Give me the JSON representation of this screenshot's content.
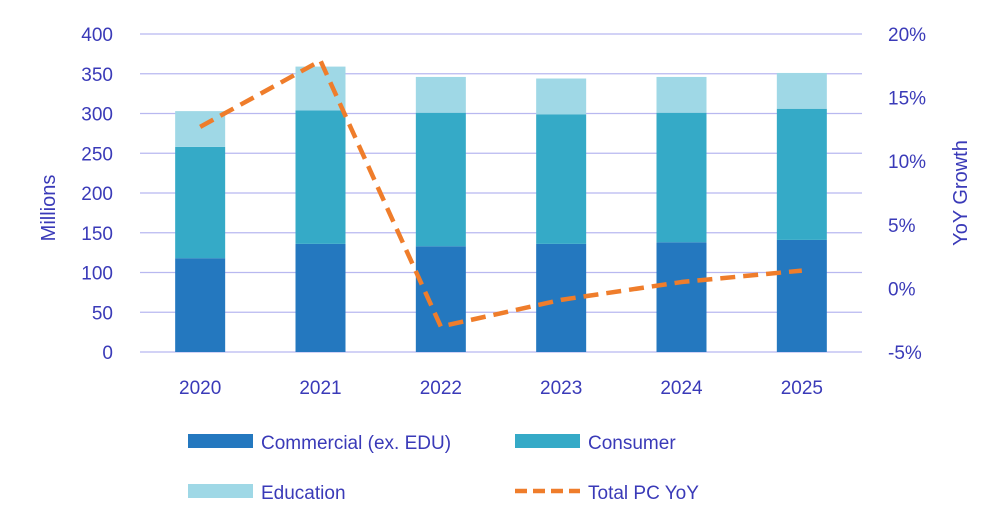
{
  "chart_data": {
    "type": "bar",
    "stacked": true,
    "categories": [
      "2020",
      "2021",
      "2022",
      "2023",
      "2024",
      "2025"
    ],
    "series": [
      {
        "name": "Commercial (ex. EDU)",
        "kind": "bar",
        "axis": "left",
        "color": "#2478bf",
        "values": [
          118,
          136,
          133,
          136,
          138,
          141
        ]
      },
      {
        "name": "Consumer",
        "kind": "bar",
        "axis": "left",
        "color": "#35aac7",
        "values": [
          140,
          168,
          168,
          163,
          163,
          165
        ]
      },
      {
        "name": "Education",
        "kind": "bar",
        "axis": "left",
        "color": "#9fd8e6",
        "values": [
          45,
          55,
          45,
          45,
          45,
          45
        ]
      },
      {
        "name": "Total PC YoY",
        "kind": "line",
        "axis": "right",
        "color": "#ef7d2b",
        "dashed": true,
        "values": [
          12.7,
          17.9,
          -3.0,
          -0.9,
          0.5,
          1.4
        ]
      }
    ],
    "ylabel": "Millions",
    "y2label": "YoY Growth",
    "ylim": [
      0,
      400
    ],
    "yticks": [
      0,
      50,
      100,
      150,
      200,
      250,
      300,
      350,
      400
    ],
    "y2lim": [
      -5,
      20
    ],
    "y2ticks": [
      "-5%",
      "0%",
      "5%",
      "10%",
      "15%",
      "20%"
    ],
    "grid": true,
    "legend_placement": "bottom"
  }
}
